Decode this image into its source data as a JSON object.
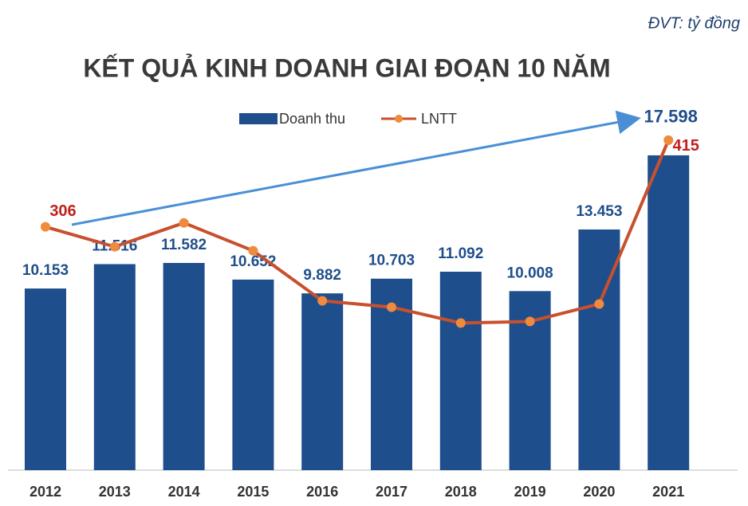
{
  "chart_data": {
    "type": "bar_line",
    "title": "KẾT QUẢ KINH DOANH GIAI ĐOẠN 10 NĂM",
    "annotation": "ĐVT: tỷ đồng",
    "categories": [
      "2012",
      "2013",
      "2014",
      "2015",
      "2016",
      "2017",
      "2018",
      "2019",
      "2020",
      "2021"
    ],
    "series": [
      {
        "name": "Doanh thu",
        "color": "#1f4e8c",
        "type": "bar",
        "values": [
          10153,
          11516,
          11582,
          10652,
          9882,
          10703,
          11092,
          10008,
          13453,
          17598
        ],
        "value_labels": [
          "10.153",
          "11.516",
          "11.582",
          "10.652",
          "9.882",
          "10.703",
          "11.092",
          "10.008",
          "13.453",
          "17.598"
        ]
      },
      {
        "name": "LNTT",
        "color": "#c8502d",
        "type": "line",
        "axis": "y2",
        "values": [
          306,
          281,
          311,
          276,
          213,
          205,
          185,
          187,
          209,
          415
        ],
        "value_labels": [
          "306",
          null,
          null,
          null,
          null,
          null,
          null,
          null,
          null,
          "415"
        ]
      }
    ],
    "ylim": [
      0,
      20000
    ],
    "y2lim": [
      0,
      450
    ],
    "legend": "top"
  }
}
